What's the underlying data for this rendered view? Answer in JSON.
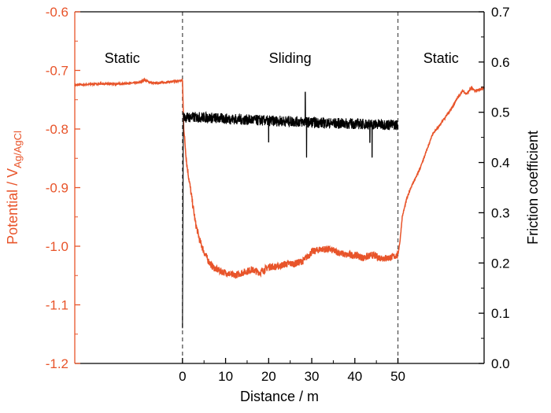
{
  "chart_data": {
    "type": "line",
    "xlabel": "Distance / m",
    "ylabel_left": {
      "main": "Potential / V",
      "sub": "Ag/AgCl"
    },
    "ylabel_right": "Friction coefficient",
    "x_ticks": [
      "0",
      "10",
      "20",
      "30",
      "40",
      "50"
    ],
    "xlim": [
      -25,
      70
    ],
    "ylim_left": [
      -1.2,
      -0.6
    ],
    "ylim_right": [
      0.0,
      0.7
    ],
    "y_left_ticks": [
      "-0.6",
      "-0.7",
      "-0.8",
      "-0.9",
      "-1.0",
      "-1.1",
      "-1.2"
    ],
    "y_right_ticks": [
      "0.7",
      "0.6",
      "0.5",
      "0.4",
      "0.3",
      "0.2",
      "0.1",
      "0.0"
    ],
    "vlines": [
      0,
      50
    ],
    "regions": [
      {
        "label": "Static",
        "x": -14
      },
      {
        "label": "Sliding",
        "x": 25
      },
      {
        "label": "Static",
        "x": 60
      }
    ],
    "colors": {
      "potential": "#e8542a",
      "friction": "#000000",
      "axis_left": "#e8542a",
      "axis_right": "#000000"
    },
    "series": [
      {
        "axis": "left",
        "x": [
          -25,
          -20,
          -15,
          -10,
          -9,
          -7,
          -5,
          -2,
          0,
          0.3,
          1,
          2,
          3,
          4,
          5,
          6,
          7,
          8,
          9,
          10,
          12,
          14,
          16,
          18,
          20,
          22,
          24,
          26,
          28,
          30,
          32,
          34,
          36,
          38,
          40,
          42,
          44,
          46,
          48,
          50,
          50.5,
          51,
          52,
          53,
          54,
          55,
          56,
          57,
          58,
          60,
          62,
          64,
          65,
          66,
          67,
          68,
          70
        ],
        "y": [
          -0.725,
          -0.723,
          -0.723,
          -0.721,
          -0.716,
          -0.722,
          -0.721,
          -0.719,
          -0.717,
          -0.8,
          -0.86,
          -0.91,
          -0.96,
          -0.99,
          -1.01,
          -1.025,
          -1.035,
          -1.04,
          -1.043,
          -1.045,
          -1.05,
          -1.045,
          -1.04,
          -1.045,
          -1.035,
          -1.035,
          -1.03,
          -1.03,
          -1.025,
          -1.01,
          -1.005,
          -1.005,
          -1.01,
          -1.015,
          -1.015,
          -1.02,
          -1.015,
          -1.02,
          -1.02,
          -1.015,
          -0.99,
          -0.95,
          -0.92,
          -0.9,
          -0.885,
          -0.87,
          -0.85,
          -0.83,
          -0.81,
          -0.79,
          -0.77,
          -0.745,
          -0.735,
          -0.74,
          -0.73,
          -0.735,
          -0.73
        ]
      },
      {
        "axis": "right",
        "x": [
          0,
          0.2,
          0.4,
          1,
          5,
          10,
          15,
          20,
          25,
          30,
          35,
          40,
          45,
          50
        ],
        "y": [
          0.07,
          0.5,
          0.49,
          0.49,
          0.49,
          0.487,
          0.485,
          0.483,
          0.482,
          0.48,
          0.478,
          0.477,
          0.476,
          0.475
        ],
        "noise": 0.006,
        "spikes": [
          {
            "x": 20,
            "y": 0.44
          },
          {
            "x": 28.5,
            "y": 0.54
          },
          {
            "x": 28.8,
            "y": 0.41
          },
          {
            "x": 43.5,
            "y": 0.44
          },
          {
            "x": 44,
            "y": 0.41
          }
        ]
      }
    ]
  }
}
